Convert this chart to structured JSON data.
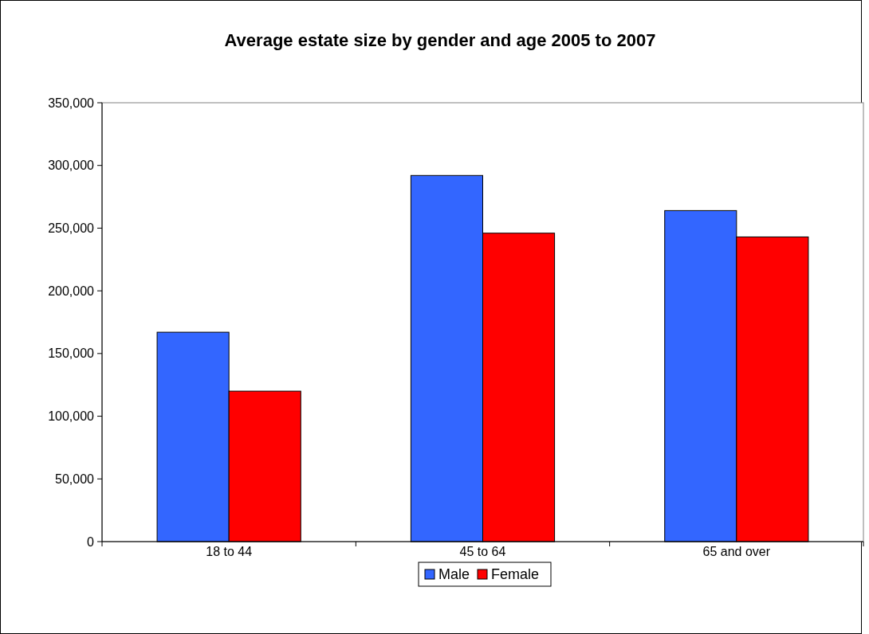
{
  "chart_data": {
    "type": "bar",
    "title": "Average estate size by gender and age 2005 to 2007",
    "categories": [
      "18 to 44",
      "45 to 64",
      "65 and over"
    ],
    "series": [
      {
        "name": "Male",
        "color": "#3366ff",
        "values": [
          167000,
          292000,
          264000
        ]
      },
      {
        "name": "Female",
        "color": "#ff0000",
        "values": [
          120000,
          246000,
          243000
        ]
      }
    ],
    "ylim": [
      0,
      350000
    ],
    "yticks": [
      {
        "value": 0,
        "label": "0"
      },
      {
        "value": 50000,
        "label": "50,000"
      },
      {
        "value": 100000,
        "label": "100,000"
      },
      {
        "value": 150000,
        "label": "150,000"
      },
      {
        "value": 200000,
        "label": "200,000"
      },
      {
        "value": 250000,
        "label": "250,000"
      },
      {
        "value": 300000,
        "label": "300,000"
      },
      {
        "value": 350000,
        "label": "350,000"
      }
    ],
    "grid": false,
    "legend": "bottom"
  }
}
